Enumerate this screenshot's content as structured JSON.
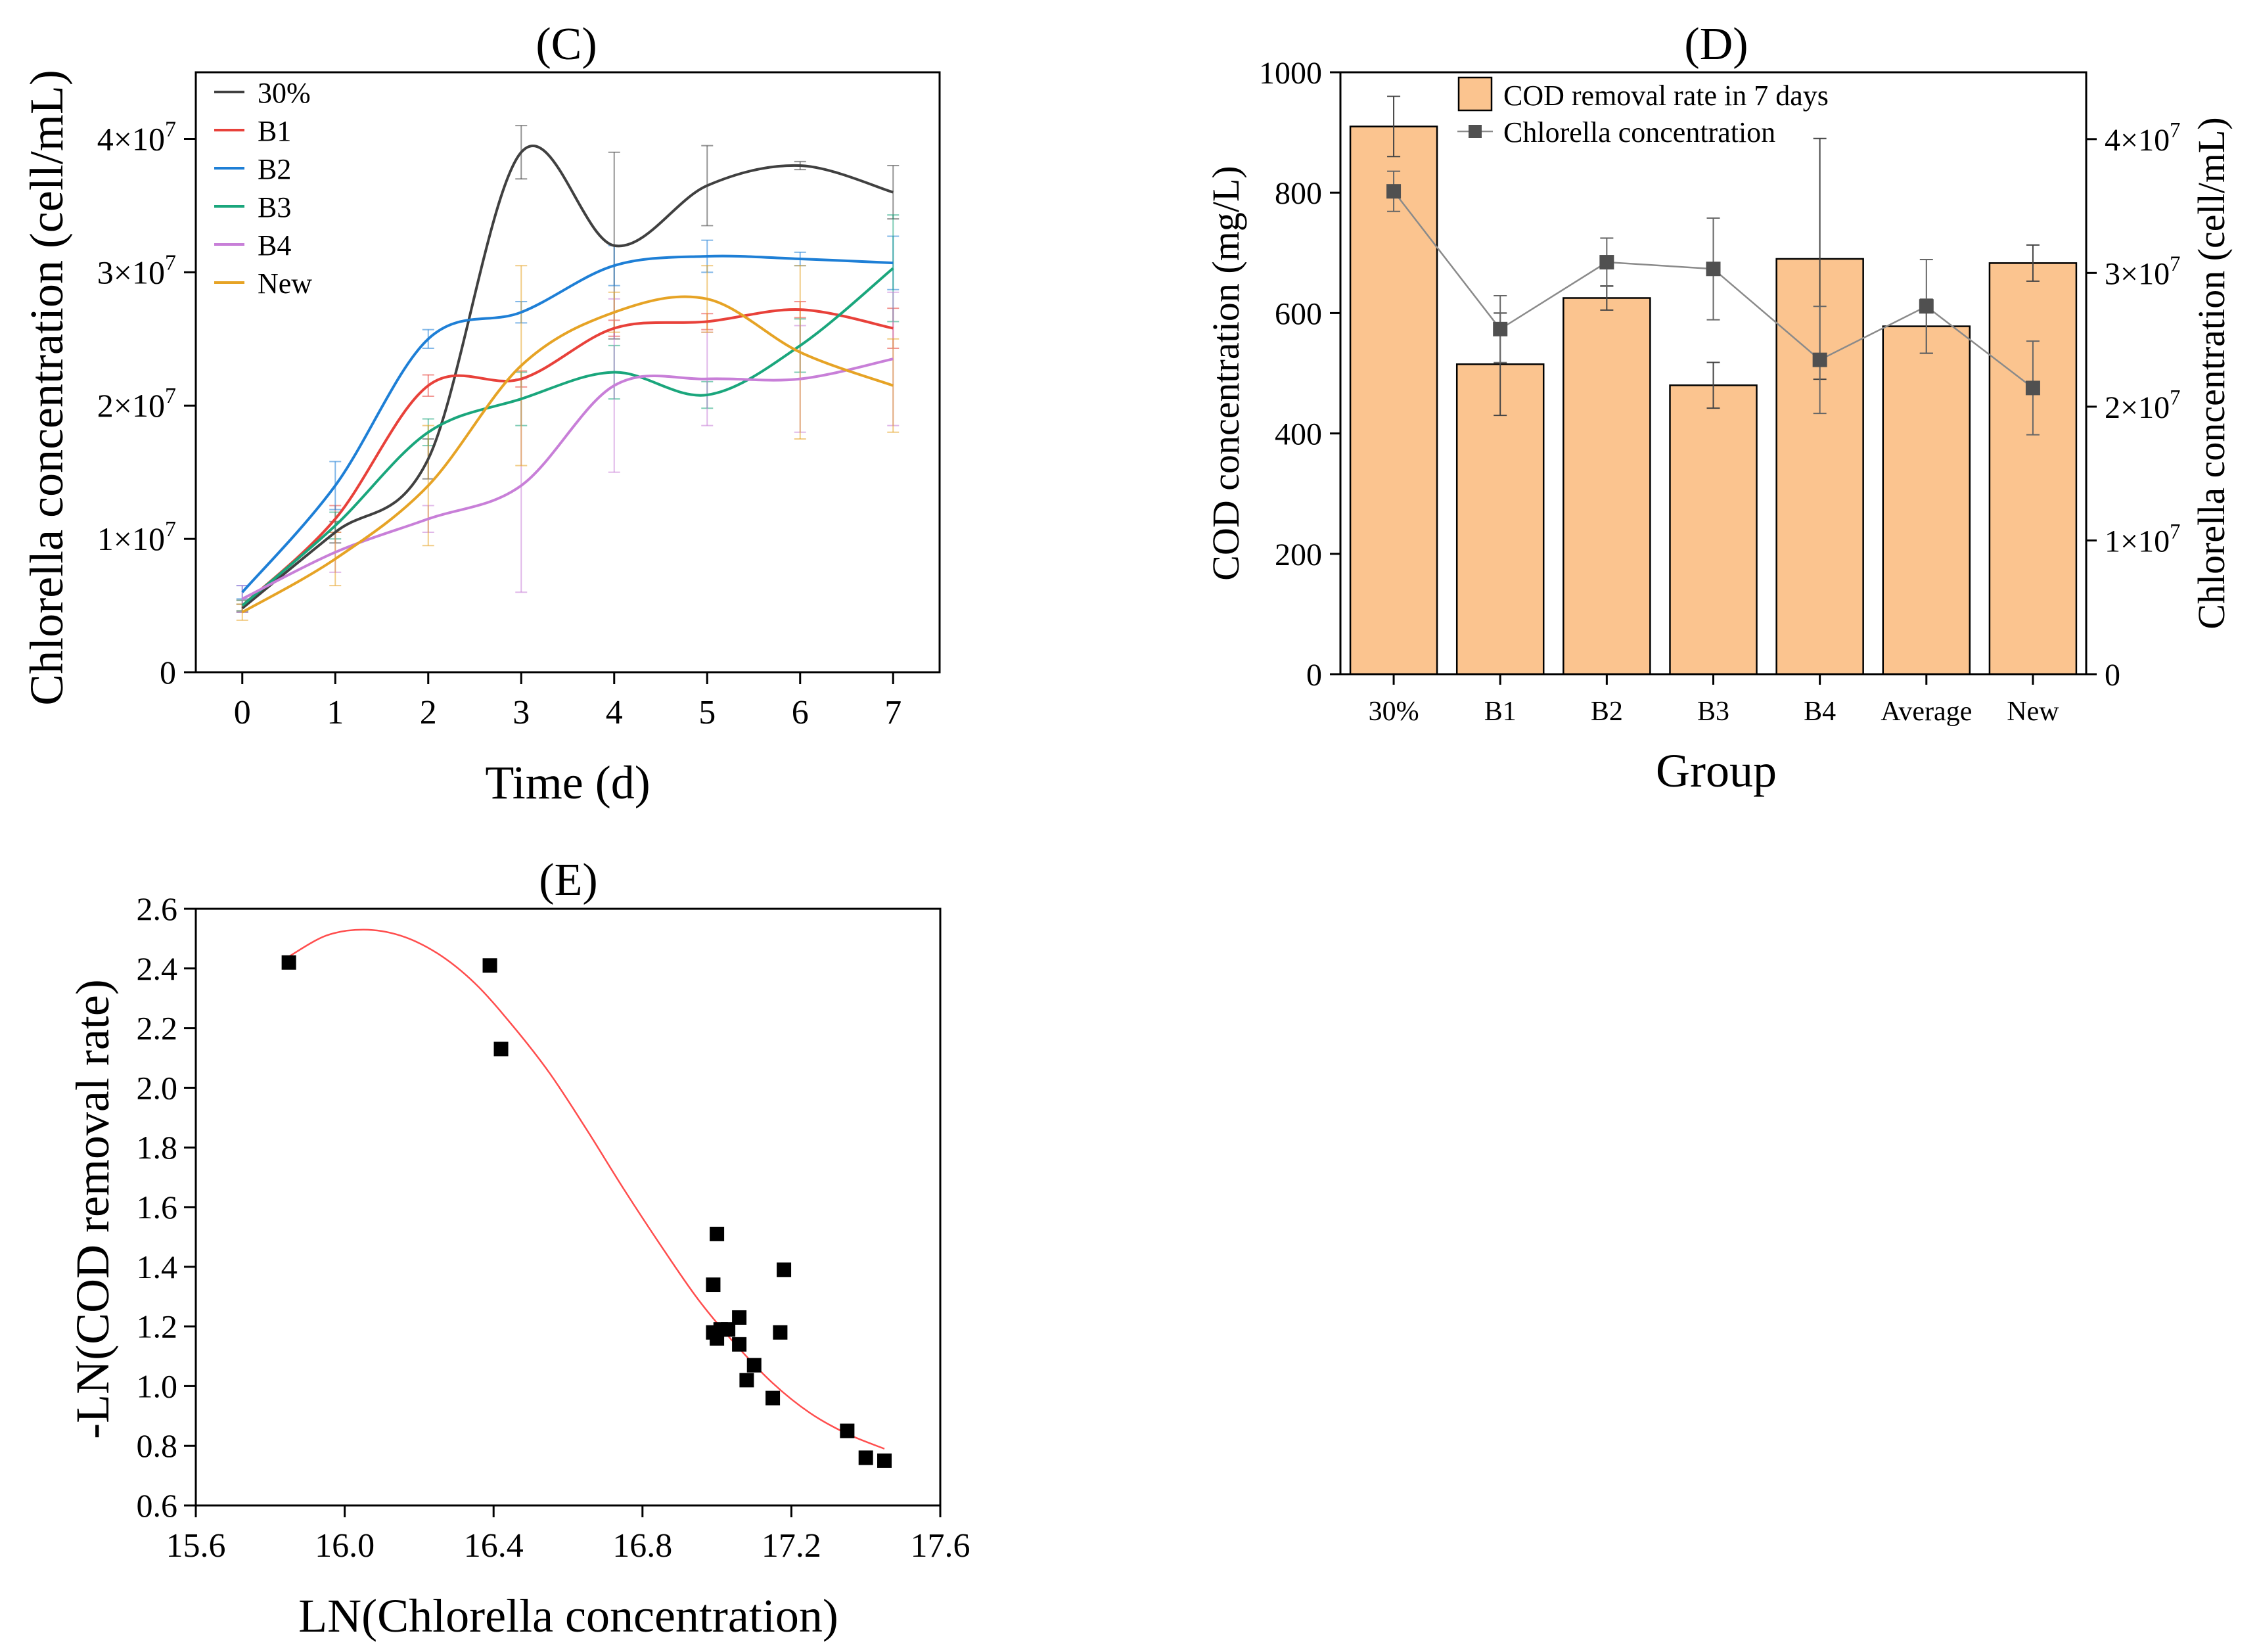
{
  "chart_data": [
    {
      "id": "C",
      "type": "line",
      "title": "(C)",
      "xlabel": "Time (d)",
      "ylabel": "Chlorella concentration (cell/mL)",
      "x": [
        0,
        1,
        2,
        3,
        4,
        5,
        6,
        7
      ],
      "xlim": [
        -0.5,
        7.5
      ],
      "ylim": [
        0,
        45000000
      ],
      "y_ticks": [
        {
          "value": 0,
          "base": "0",
          "exp": ""
        },
        {
          "value": 10000000,
          "base": "1×10",
          "exp": "7"
        },
        {
          "value": 20000000,
          "base": "2×10",
          "exp": "7"
        },
        {
          "value": 30000000,
          "base": "3×10",
          "exp": "7"
        },
        {
          "value": 40000000,
          "base": "4×10",
          "exp": "7"
        }
      ],
      "legend": "top-left",
      "series": [
        {
          "name": "30%",
          "color": "#404040",
          "values": [
            4800000,
            10500000,
            16000000,
            39000000,
            32000000,
            36500000,
            38000000,
            36000000
          ],
          "errors": [
            300000,
            800000,
            1500000,
            2000000,
            7000000,
            3000000,
            300000,
            2000000
          ]
        },
        {
          "name": "B1",
          "color": "#e8413a",
          "values": [
            5000000,
            11500000,
            21500000,
            22000000,
            25800000,
            26300000,
            27200000,
            25800000
          ],
          "errors": [
            400000,
            1000000,
            800000,
            600000,
            600000,
            600000,
            600000,
            1500000
          ]
        },
        {
          "name": "B2",
          "color": "#1e7fd6",
          "values": [
            6000000,
            14000000,
            25000000,
            27000000,
            30500000,
            31200000,
            31000000,
            30700000
          ],
          "errors": [
            500000,
            1800000,
            700000,
            800000,
            1500000,
            1200000,
            500000,
            2000000
          ]
        },
        {
          "name": "B3",
          "color": "#1aa67c",
          "values": [
            5000000,
            11000000,
            18000000,
            20500000,
            22500000,
            20800000,
            24500000,
            30300000
          ],
          "errors": [
            400000,
            1000000,
            1000000,
            2000000,
            2000000,
            1000000,
            2000000,
            4000000
          ]
        },
        {
          "name": "B4",
          "color": "#c87fd8",
          "values": [
            5500000,
            9000000,
            11500000,
            14000000,
            21500000,
            22000000,
            22000000,
            23500000
          ],
          "errors": [
            1000000,
            1500000,
            1000000,
            8000000,
            6500000,
            3500000,
            4000000,
            5000000
          ]
        },
        {
          "name": "New",
          "color": "#e6a325",
          "values": [
            4500000,
            8500000,
            14000000,
            23000000,
            27000000,
            28000000,
            24000000,
            21500000
          ],
          "errors": [
            600000,
            2000000,
            4500000,
            7500000,
            1500000,
            2500000,
            6500000,
            3500000
          ]
        }
      ]
    },
    {
      "id": "D",
      "type": "bar",
      "title": "(D)",
      "xlabel": "Group",
      "ylabel": "COD concentration (mg/L)",
      "ylabel_right": "Chlorella concentration (cell/mL)",
      "categories": [
        "30%",
        "B1",
        "B2",
        "B3",
        "B4",
        "Average",
        "New"
      ],
      "ylim": [
        0,
        1000
      ],
      "y_ticks": [
        "0",
        "200",
        "400",
        "600",
        "800",
        "1000"
      ],
      "ylim_right": [
        0,
        45000000
      ],
      "y_ticks_right": [
        {
          "value": 0,
          "base": "0",
          "exp": ""
        },
        {
          "value": 10000000,
          "base": "1×10",
          "exp": "7"
        },
        {
          "value": 20000000,
          "base": "2×10",
          "exp": "7"
        },
        {
          "value": 30000000,
          "base": "3×10",
          "exp": "7"
        },
        {
          "value": 40000000,
          "base": "4×10",
          "exp": "7"
        }
      ],
      "legend": "top-center",
      "bar_color": "#fbc48f",
      "line_color": "#505050",
      "series": [
        {
          "name": "COD removal rate in 7 days",
          "kind": "bar",
          "axis": "left",
          "values": [
            910,
            515,
            625,
            480,
            690,
            578,
            683
          ],
          "errors": [
            50,
            85,
            20,
            38,
            200,
            45,
            30
          ]
        },
        {
          "name": "Chlorella concentration",
          "kind": "line",
          "axis": "right",
          "values": [
            36100000,
            25800000,
            30800000,
            30300000,
            23500000,
            27500000,
            21400000
          ],
          "errors": [
            1500000,
            2500000,
            1800000,
            3800000,
            4000000,
            3500000,
            3500000
          ]
        }
      ]
    },
    {
      "id": "E",
      "type": "scatter",
      "title": "(E)",
      "xlabel": "LN(Chlorella concentration)",
      "ylabel": "-LN(COD removal rate)",
      "xlim": [
        15.6,
        17.6
      ],
      "x_ticks": [
        "15.6",
        "16.0",
        "16.4",
        "16.8",
        "17.2",
        "17.6"
      ],
      "ylim": [
        0.6,
        2.6
      ],
      "y_ticks": [
        "0.6",
        "0.8",
        "1.0",
        "1.2",
        "1.4",
        "1.6",
        "1.8",
        "2.0",
        "2.2",
        "2.4",
        "2.6"
      ],
      "marker_color": "#000000",
      "fit_color": "#ff4d4d",
      "points": [
        [
          15.85,
          2.42
        ],
        [
          16.39,
          2.41
        ],
        [
          16.42,
          2.13
        ],
        [
          16.99,
          1.34
        ],
        [
          17.0,
          1.51
        ],
        [
          16.99,
          1.18
        ],
        [
          17.0,
          1.16
        ],
        [
          17.01,
          1.19
        ],
        [
          17.03,
          1.19
        ],
        [
          17.06,
          1.23
        ],
        [
          17.06,
          1.14
        ],
        [
          17.08,
          1.02
        ],
        [
          17.1,
          1.07
        ],
        [
          17.15,
          0.96
        ],
        [
          17.17,
          1.18
        ],
        [
          17.18,
          1.39
        ],
        [
          17.35,
          0.85
        ],
        [
          17.4,
          0.76
        ],
        [
          17.45,
          0.75
        ]
      ],
      "fit_line": [
        [
          15.85,
          2.44
        ],
        [
          15.95,
          2.51
        ],
        [
          16.05,
          2.53
        ],
        [
          16.15,
          2.51
        ],
        [
          16.25,
          2.45
        ],
        [
          16.35,
          2.35
        ],
        [
          16.45,
          2.21
        ],
        [
          16.55,
          2.05
        ],
        [
          16.65,
          1.86
        ],
        [
          16.75,
          1.66
        ],
        [
          16.85,
          1.47
        ],
        [
          16.95,
          1.29
        ],
        [
          17.05,
          1.14
        ],
        [
          17.15,
          1.01
        ],
        [
          17.25,
          0.91
        ],
        [
          17.35,
          0.84
        ],
        [
          17.45,
          0.79
        ]
      ]
    }
  ]
}
